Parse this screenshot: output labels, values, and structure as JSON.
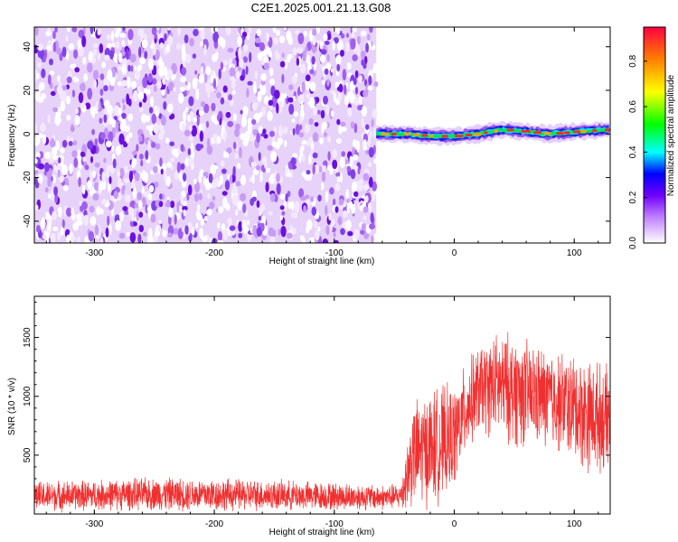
{
  "title": "C2E1.2025.001.21.13.G08",
  "chart_data": [
    {
      "type": "heatmap",
      "xlabel": "Height of straight line (km)",
      "ylabel": "Frequency (Hz)",
      "xlim": [
        -350,
        130
      ],
      "ylim": [
        -50,
        49
      ],
      "x_ticks": [
        -300,
        -200,
        -100,
        0,
        100
      ],
      "y_ticks": [
        -40,
        -20,
        0,
        20,
        40
      ],
      "colorbar": {
        "label": "Normalized spectral amplitude",
        "range": [
          0,
          0.95
        ],
        "ticks": [
          0.0,
          0.2,
          0.4,
          0.6,
          0.8
        ]
      },
      "noise_region_x": [
        -350,
        -65
      ],
      "signal_line": {
        "x": [
          -65,
          -40,
          -20,
          0,
          20,
          40,
          60,
          80,
          100,
          130
        ],
        "frequency": [
          0,
          0,
          -1,
          -1,
          0,
          2,
          1,
          0,
          1,
          2
        ]
      }
    },
    {
      "type": "line",
      "xlabel": "Height of straight line (km)",
      "ylabel": "SNR (10 * v/v)",
      "xlim": [
        -350,
        130
      ],
      "ylim": [
        0,
        1850
      ],
      "x_ticks": [
        -300,
        -200,
        -100,
        0,
        100
      ],
      "y_ticks": [
        500,
        1000,
        1500
      ],
      "color": "#f03030",
      "envelope": {
        "x": [
          -350,
          -300,
          -250,
          -200,
          -150,
          -100,
          -60,
          -45,
          -40,
          -35,
          -25,
          -10,
          0,
          10,
          20,
          35,
          50,
          70,
          90,
          110,
          130
        ],
        "mean": [
          150,
          160,
          170,
          165,
          160,
          150,
          140,
          150,
          300,
          500,
          550,
          600,
          650,
          900,
          1050,
          1100,
          1050,
          1000,
          950,
          850,
          800
        ],
        "spread": [
          120,
          120,
          130,
          130,
          120,
          110,
          100,
          100,
          250,
          400,
          450,
          450,
          400,
          350,
          350,
          400,
          450,
          400,
          400,
          450,
          400
        ]
      }
    }
  ]
}
